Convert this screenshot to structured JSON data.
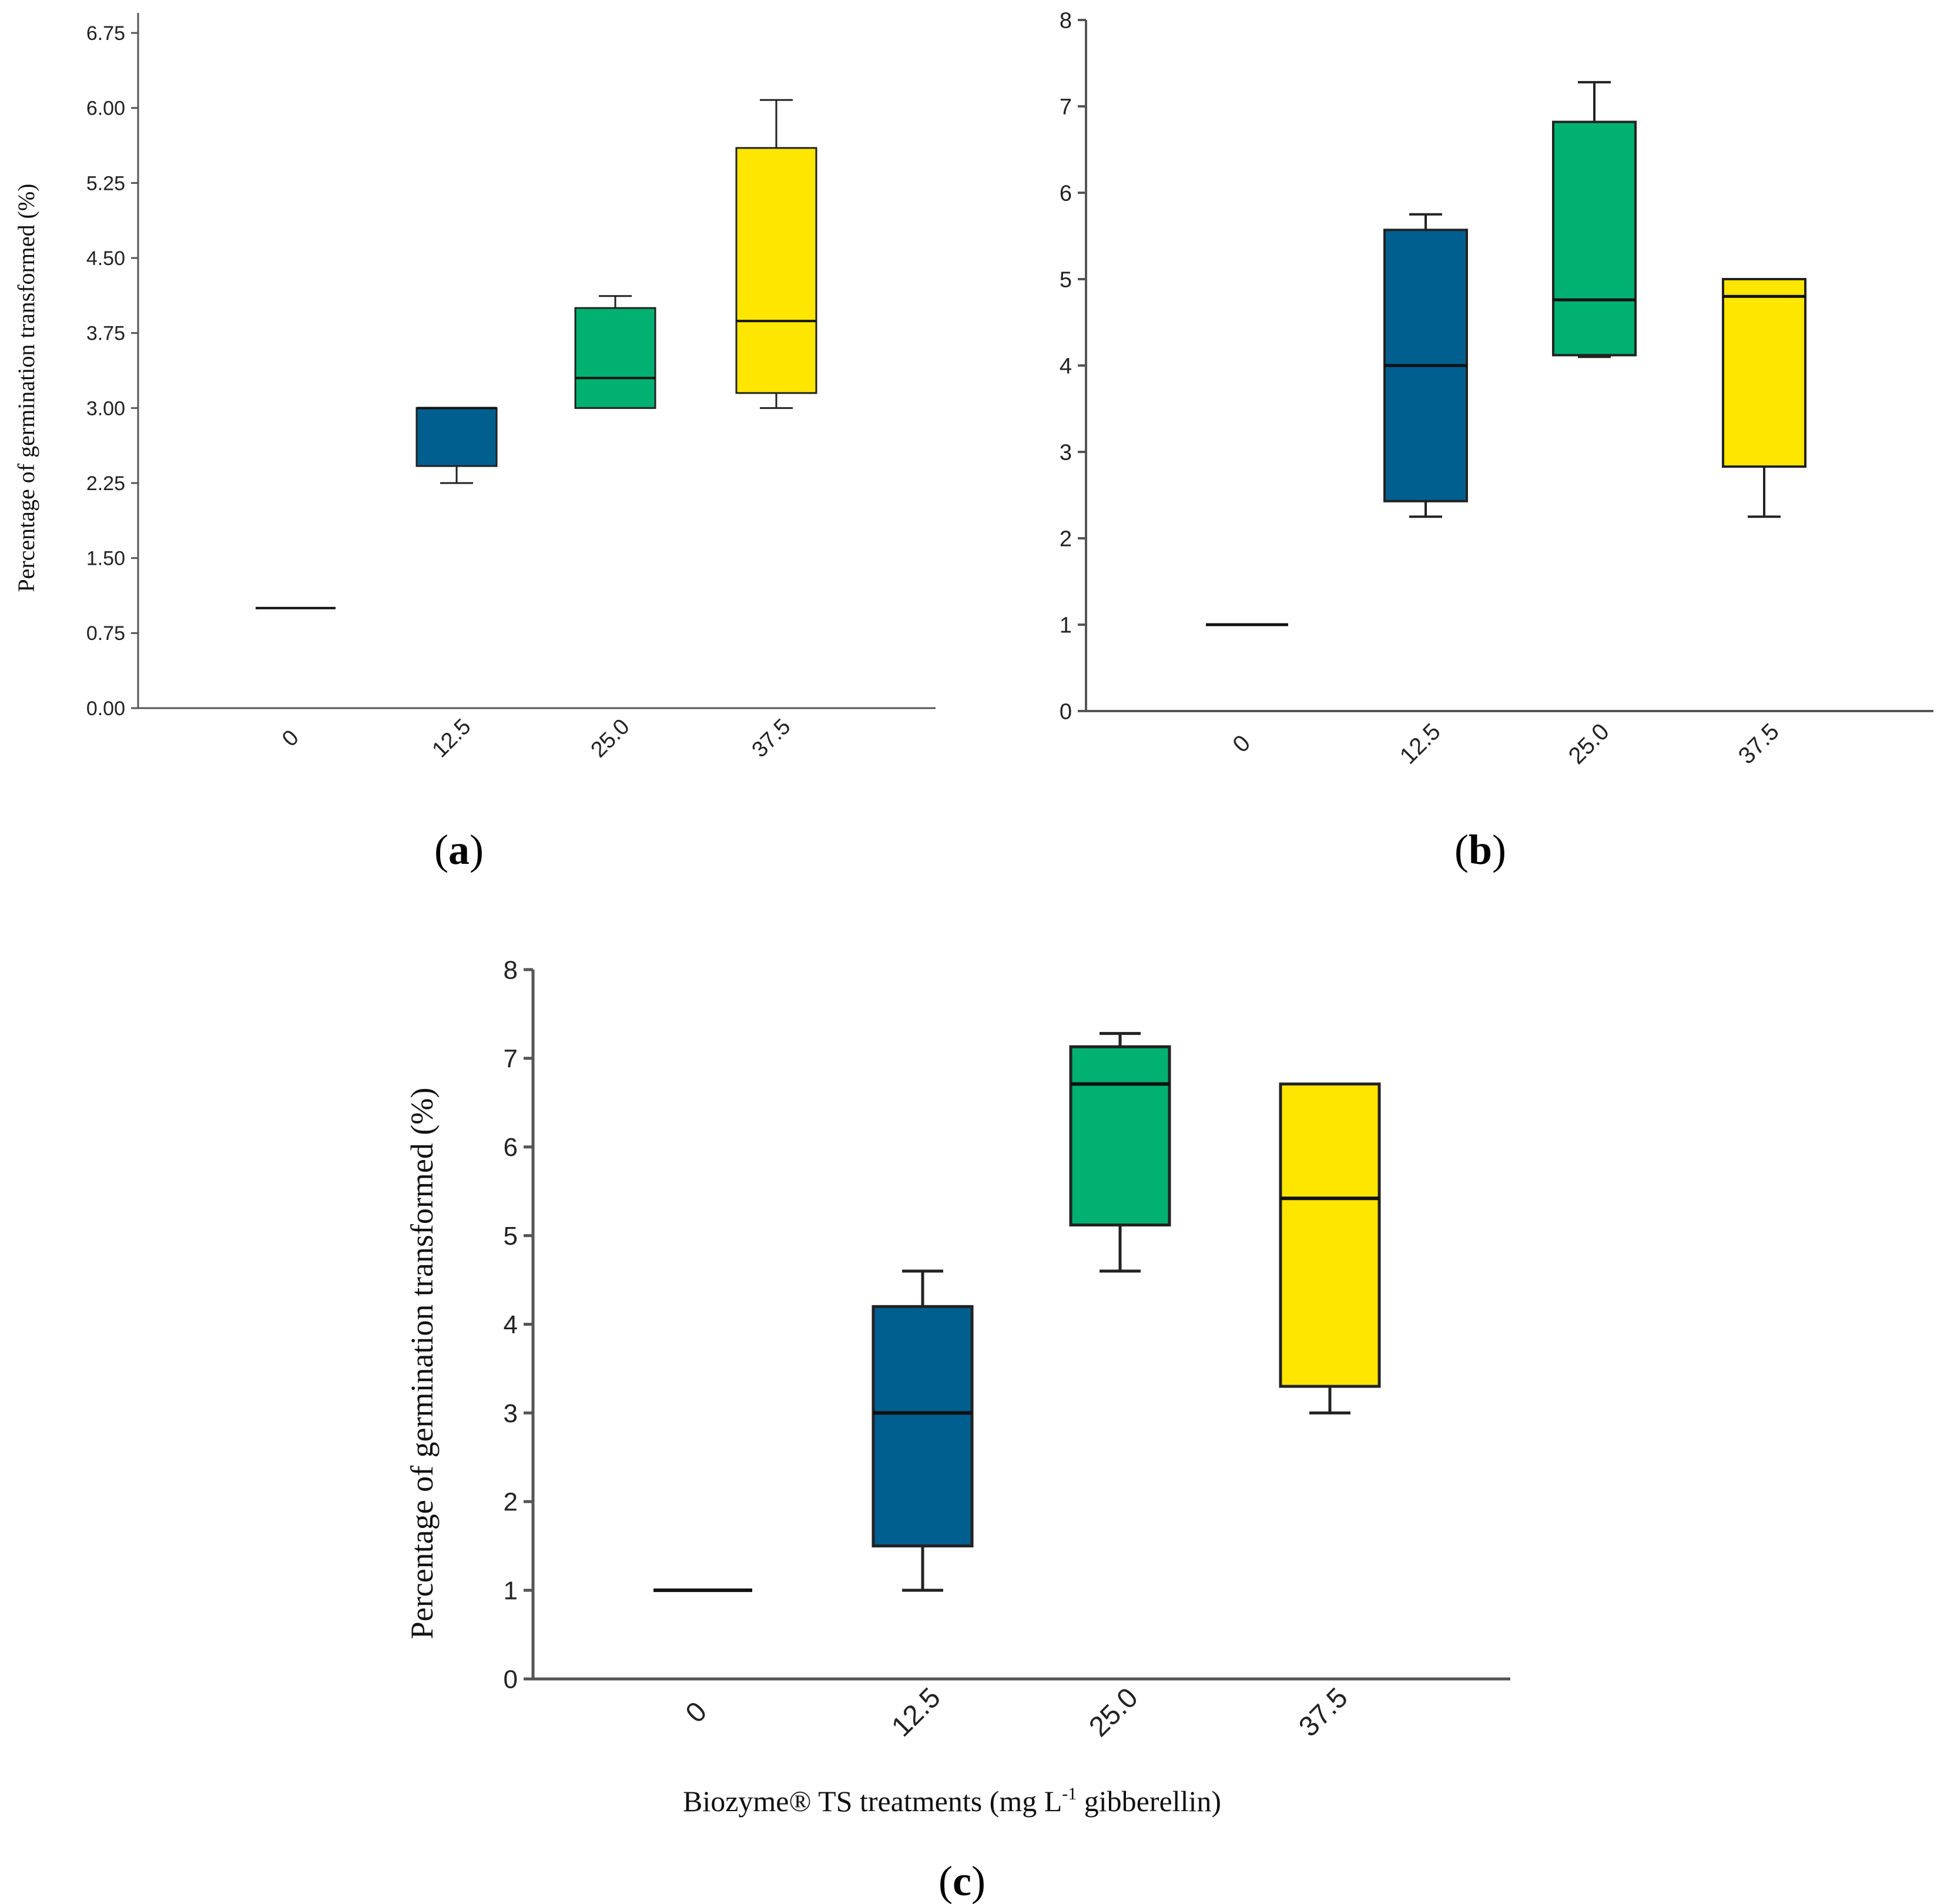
{
  "figure": {
    "x_axis_title": "Biozyme® TS treatments (mg L-1 gibberellin)",
    "x_axis_title_main": "Biozyme® TS treatments (mg L",
    "x_axis_title_sup": "-1",
    "x_axis_title_tail": " gibberellin)"
  },
  "chart_data": [
    {
      "type": "box",
      "panel_label": "a",
      "title": "",
      "ylabel": "Percentage of germination transformed (%)",
      "xlabel": "",
      "categories": [
        "0",
        "12.5",
        "25.0",
        "37.5"
      ],
      "ylim": [
        0,
        6.95
      ],
      "yticks": [
        "0.00",
        "0.75",
        "1.50",
        "2.25",
        "3.00",
        "3.75",
        "4.50",
        "5.25",
        "6.00",
        "6.75"
      ],
      "series": [
        {
          "category": "0",
          "min": 1.0,
          "q1": 1.0,
          "median": 1.0,
          "q3": 1.0,
          "max": 1.0,
          "color": "#111111"
        },
        {
          "category": "12.5",
          "min": 2.25,
          "q1": 2.42,
          "median": 3.0,
          "q3": 3.0,
          "max": 3.0,
          "color": "#005f8f"
        },
        {
          "category": "25.0",
          "min": 3.0,
          "q1": 3.0,
          "median": 3.3,
          "q3": 4.0,
          "max": 4.12,
          "color": "#00b171"
        },
        {
          "category": "37.5",
          "min": 3.0,
          "q1": 3.15,
          "median": 3.87,
          "q3": 5.6,
          "max": 6.08,
          "color": "#ffe600"
        }
      ]
    },
    {
      "type": "box",
      "panel_label": "b",
      "title": "",
      "ylabel": "",
      "xlabel": "",
      "categories": [
        "0",
        "12.5",
        "25.0",
        "37.5"
      ],
      "ylim": [
        0,
        8
      ],
      "yticks": [
        "0",
        "1",
        "2",
        "3",
        "4",
        "5",
        "6",
        "7",
        "8"
      ],
      "series": [
        {
          "category": "0",
          "min": 1.0,
          "q1": 1.0,
          "median": 1.0,
          "q3": 1.0,
          "max": 1.0,
          "color": "#111111"
        },
        {
          "category": "12.5",
          "min": 2.25,
          "q1": 2.43,
          "median": 4.0,
          "q3": 5.57,
          "max": 5.75,
          "color": "#005f8f"
        },
        {
          "category": "25.0",
          "min": 4.1,
          "q1": 4.12,
          "median": 4.76,
          "q3": 6.82,
          "max": 7.28,
          "color": "#00b171"
        },
        {
          "category": "37.5",
          "min": 2.25,
          "q1": 2.83,
          "median": 4.8,
          "q3": 5.0,
          "max": 5.0,
          "color": "#ffe600"
        }
      ]
    },
    {
      "type": "box",
      "panel_label": "c",
      "title": "",
      "ylabel": "Percentage of germination transformed (%)",
      "xlabel": "Biozyme® TS treatments (mg L-1 gibberellin)",
      "categories": [
        "0",
        "12.5",
        "25.0",
        "37.5"
      ],
      "ylim": [
        0,
        8
      ],
      "yticks": [
        "0",
        "1",
        "2",
        "3",
        "4",
        "5",
        "6",
        "7",
        "8"
      ],
      "series": [
        {
          "category": "0",
          "min": 1.0,
          "q1": 1.0,
          "median": 1.0,
          "q3": 1.0,
          "max": 1.0,
          "color": "#111111"
        },
        {
          "category": "12.5",
          "min": 1.0,
          "q1": 1.5,
          "median": 3.0,
          "q3": 4.2,
          "max": 4.6,
          "color": "#005f8f"
        },
        {
          "category": "25.0",
          "min": 4.6,
          "q1": 5.12,
          "median": 6.71,
          "q3": 7.13,
          "max": 7.28,
          "color": "#00b171"
        },
        {
          "category": "37.5",
          "min": 3.0,
          "q1": 3.3,
          "median": 5.42,
          "q3": 6.71,
          "max": 6.71,
          "color": "#ffe600"
        }
      ]
    }
  ]
}
